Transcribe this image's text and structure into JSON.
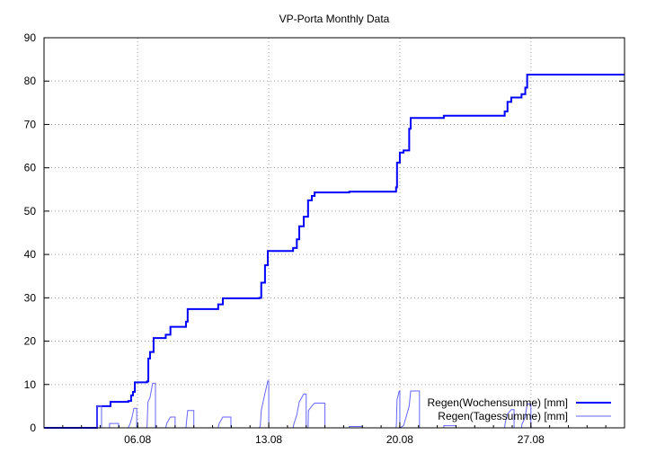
{
  "chart_data": {
    "type": "line",
    "title": "VP-Porta Monthly Data",
    "xlabel": "",
    "ylabel": "",
    "x_unit": "days since 01.08 00:00",
    "xlim": [
      0,
      31
    ],
    "ylim": [
      0,
      90
    ],
    "yticks": [
      0,
      10,
      20,
      30,
      40,
      50,
      60,
      70,
      80,
      90
    ],
    "xticks": [
      {
        "value": 5,
        "label": "06.08"
      },
      {
        "value": 12,
        "label": "13.08"
      },
      {
        "value": 19,
        "label": "20.08"
      },
      {
        "value": 26,
        "label": "27.08"
      }
    ],
    "grid": true,
    "legend_position": "bottom-right",
    "series": [
      {
        "name": "Regen(Wochensumme) [mm]",
        "color": "#0000ff",
        "style": "step-thick",
        "points": [
          [
            0,
            0
          ],
          [
            2.83,
            5
          ],
          [
            3.55,
            6
          ],
          [
            4.5,
            6.2
          ],
          [
            4.65,
            7.5
          ],
          [
            4.75,
            8.3
          ],
          [
            4.85,
            10.5
          ],
          [
            5.5,
            10.7
          ],
          [
            5.57,
            16
          ],
          [
            5.66,
            17.5
          ],
          [
            5.85,
            20.7
          ],
          [
            6.5,
            21.5
          ],
          [
            6.75,
            23.3
          ],
          [
            7.58,
            24.5
          ],
          [
            7.67,
            27.4
          ],
          [
            9.3,
            28.5
          ],
          [
            9.55,
            29.9
          ],
          [
            11.5,
            30
          ],
          [
            11.6,
            33.5
          ],
          [
            11.8,
            37.5
          ],
          [
            11.95,
            40.8
          ],
          [
            13.3,
            41.5
          ],
          [
            13.5,
            43.5
          ],
          [
            13.63,
            46.5
          ],
          [
            13.87,
            48.7
          ],
          [
            14.1,
            52.5
          ],
          [
            14.3,
            53.5
          ],
          [
            14.45,
            54.3
          ],
          [
            16.3,
            54.5
          ],
          [
            18.8,
            55.5
          ],
          [
            18.85,
            61.2
          ],
          [
            19,
            63.5
          ],
          [
            19.2,
            64
          ],
          [
            19.5,
            69
          ],
          [
            19.58,
            71.5
          ],
          [
            21.35,
            72
          ],
          [
            24.6,
            73
          ],
          [
            24.75,
            75.2
          ],
          [
            24.95,
            76.2
          ],
          [
            25.5,
            77
          ],
          [
            25.7,
            78.5
          ],
          [
            25.8,
            81.5
          ],
          [
            31,
            81.5
          ]
        ]
      },
      {
        "name": "Regen(Tagessumme) [mm]",
        "color": "#6666ff",
        "style": "thin",
        "points": [
          [
            0,
            0
          ],
          [
            2.83,
            0
          ],
          [
            2.83,
            5
          ],
          [
            3.07,
            5
          ],
          [
            3.07,
            0
          ],
          [
            3.5,
            0
          ],
          [
            3.5,
            1
          ],
          [
            3.98,
            1
          ],
          [
            3.98,
            0
          ],
          [
            4.5,
            0
          ],
          [
            4.6,
            1
          ],
          [
            4.7,
            2.5
          ],
          [
            4.8,
            4.5
          ],
          [
            4.95,
            4.5
          ],
          [
            4.95,
            0
          ],
          [
            5.5,
            0
          ],
          [
            5.55,
            6
          ],
          [
            5.66,
            7
          ],
          [
            5.8,
            10.3
          ],
          [
            5.95,
            10.3
          ],
          [
            5.95,
            0
          ],
          [
            6.5,
            0
          ],
          [
            6.55,
            1
          ],
          [
            6.75,
            2.5
          ],
          [
            7,
            2.5
          ],
          [
            7,
            0
          ],
          [
            7.58,
            0
          ],
          [
            7.6,
            1
          ],
          [
            7.67,
            4
          ],
          [
            8,
            4
          ],
          [
            8,
            0
          ],
          [
            9.3,
            0
          ],
          [
            9.35,
            1
          ],
          [
            9.55,
            2.5
          ],
          [
            9.98,
            2.5
          ],
          [
            9.98,
            0
          ],
          [
            11.5,
            0
          ],
          [
            11.55,
            0.5
          ],
          [
            11.6,
            4
          ],
          [
            11.8,
            8
          ],
          [
            11.95,
            10.8
          ],
          [
            12,
            10.8
          ],
          [
            12,
            0
          ],
          [
            13.3,
            0
          ],
          [
            13.35,
            1
          ],
          [
            13.5,
            3
          ],
          [
            13.63,
            6
          ],
          [
            13.87,
            7.8
          ],
          [
            14,
            7.8
          ],
          [
            14,
            0
          ],
          [
            14.1,
            0
          ],
          [
            14.12,
            4
          ],
          [
            14.3,
            5
          ],
          [
            14.45,
            5.7
          ],
          [
            15,
            5.7
          ],
          [
            15,
            0
          ],
          [
            16.3,
            0
          ],
          [
            16.3,
            0.3
          ],
          [
            17,
            0.3
          ],
          [
            17,
            0
          ],
          [
            18.8,
            0
          ],
          [
            18.82,
            1
          ],
          [
            18.85,
            6.5
          ],
          [
            18.97,
            8.5
          ],
          [
            19,
            8.5
          ],
          [
            19,
            0
          ],
          [
            19.2,
            0.5
          ],
          [
            19.5,
            5
          ],
          [
            19.58,
            8.5
          ],
          [
            20.05,
            8.5
          ],
          [
            20.05,
            0
          ],
          [
            21.35,
            0
          ],
          [
            21.35,
            0.5
          ],
          [
            22,
            0.5
          ],
          [
            22,
            0
          ],
          [
            24.6,
            0
          ],
          [
            24.62,
            1
          ],
          [
            24.75,
            3.2
          ],
          [
            24.95,
            4.2
          ],
          [
            25.1,
            4.2
          ],
          [
            25.1,
            0
          ],
          [
            25.5,
            0
          ],
          [
            25.52,
            0.8
          ],
          [
            25.7,
            2.5
          ],
          [
            25.8,
            5.5
          ],
          [
            26,
            5.5
          ],
          [
            26,
            0
          ],
          [
            31,
            0
          ]
        ]
      }
    ]
  }
}
